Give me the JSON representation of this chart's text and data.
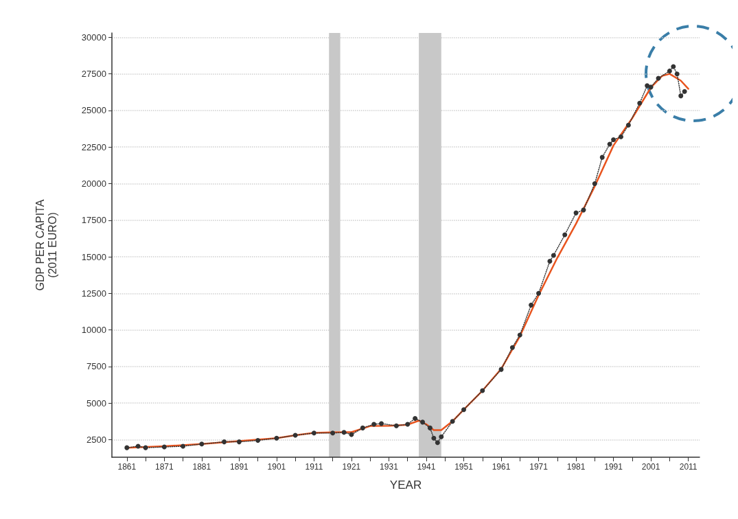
{
  "chart_data": {
    "type": "line",
    "xlabel": "YEAR",
    "ylabel": "GDP PER CAPITA\n(2011 EURO)",
    "xlim": [
      1857,
      2014
    ],
    "xticks": [
      1861,
      1871,
      1881,
      1891,
      1901,
      1911,
      1921,
      1931,
      1941,
      1951,
      1961,
      1971,
      1981,
      1991,
      2001,
      2011
    ],
    "ylim": [
      1300,
      30300
    ],
    "yticks": [
      2500,
      5000,
      7500,
      10000,
      12500,
      15000,
      17500,
      20000,
      22500,
      25000,
      27500,
      30000
    ],
    "grid": "y",
    "marker": "none",
    "bands": [
      {
        "axis": "x",
        "from": 1915,
        "to": 1918,
        "color": "#c8c8c8"
      },
      {
        "axis": "x",
        "from": 1939,
        "to": 1945,
        "color": "#c8c8c8"
      }
    ],
    "series": [
      {
        "color": "#333333",
        "line_style": "dotted",
        "marker": "circle",
        "x": [
          1861,
          1864,
          1866,
          1871,
          1876,
          1881,
          1887,
          1891,
          1896,
          1901,
          1906,
          1911,
          1916,
          1919,
          1921,
          1924,
          1927,
          1929,
          1933,
          1936,
          1938,
          1940,
          1942,
          1943,
          1944,
          1945,
          1948,
          1951,
          1956,
          1961,
          1964,
          1966,
          1969,
          1971,
          1974,
          1975,
          1978,
          1981,
          1983,
          1986,
          1988,
          1990,
          1991,
          1993,
          1995,
          1998,
          2000,
          2001,
          2003,
          2006,
          2007,
          2008,
          2009,
          2010
        ],
        "values": [
          1950,
          2050,
          1950,
          2000,
          2050,
          2200,
          2350,
          2350,
          2450,
          2600,
          2800,
          2950,
          2950,
          3000,
          2850,
          3300,
          3550,
          3600,
          3450,
          3550,
          3950,
          3700,
          3300,
          2600,
          2300,
          2700,
          3750,
          4550,
          5850,
          7300,
          8800,
          9650,
          11700,
          12500,
          14700,
          15100,
          16500,
          18000,
          18200,
          20000,
          21800,
          22700,
          23000,
          23200,
          24000,
          25500,
          26700,
          26600,
          27200,
          27700,
          28000,
          27500,
          26000,
          26300
        ]
      },
      {
        "color": "#e8541e",
        "line_style": "solid",
        "x": [
          1861,
          1871,
          1881,
          1891,
          1901,
          1906,
          1911,
          1916,
          1921,
          1926,
          1931,
          1936,
          1939,
          1941,
          1943,
          1945,
          1948,
          1951,
          1956,
          1961,
          1966,
          1971,
          1976,
          1981,
          1986,
          1991,
          1996,
          2001,
          2004,
          2006,
          2009,
          2011
        ],
        "values": [
          1950,
          2050,
          2200,
          2400,
          2600,
          2800,
          2970,
          3000,
          3010,
          3430,
          3450,
          3520,
          3800,
          3550,
          3150,
          3150,
          3760,
          4550,
          5850,
          7340,
          9570,
          12370,
          14930,
          17260,
          19820,
          22610,
          24470,
          26570,
          27360,
          27500,
          27040,
          26480
        ]
      }
    ]
  }
}
